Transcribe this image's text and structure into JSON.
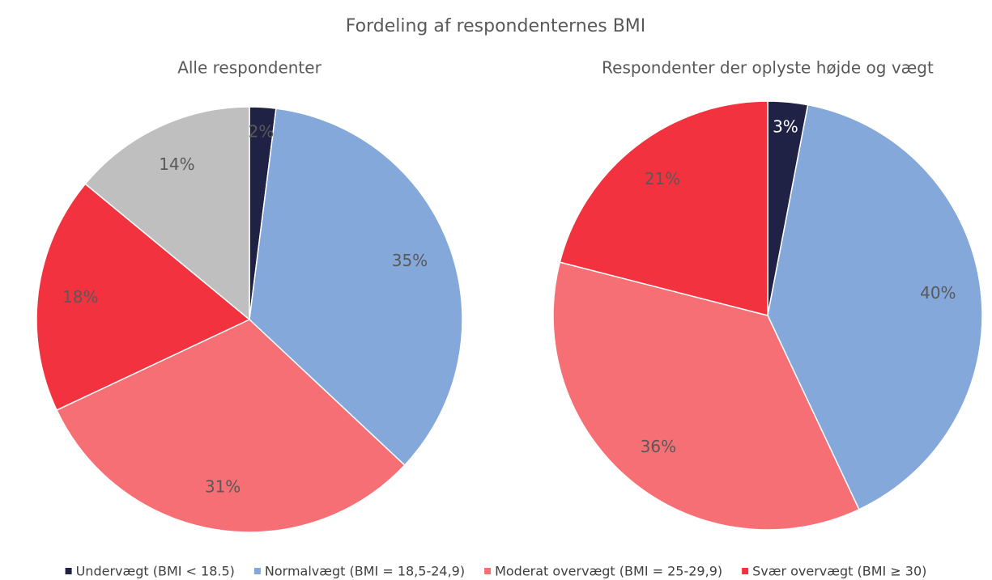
{
  "title": "Fordeling af respondenternes BMI",
  "chart_data": [
    {
      "type": "pie",
      "title": "Alle respondenter",
      "categories": [
        "Undervægt (BMI < 18.5)",
        "Normalvægt (BMI = 18,5-24,9)",
        "Moderat overvægt (BMI = 25-29,9)",
        "Svær overvægt (BMI ≥ 30)",
        null
      ],
      "values": [
        2,
        35,
        31,
        18,
        14
      ],
      "value_labels": [
        "2%",
        "35%",
        "31%",
        "18%",
        "14%"
      ],
      "colors": [
        "#1f2244",
        "#84a8da",
        "#f66f75",
        "#f2323e",
        "#bfbfbf"
      ],
      "legend": "bottom"
    },
    {
      "type": "pie",
      "title": "Respondenter der oplyste højde og vægt",
      "categories": [
        "Undervægt (BMI < 18.5)",
        "Normalvægt (BMI = 18,5-24,9)",
        "Moderat overvægt (BMI = 25-29,9)",
        "Svær overvægt (BMI ≥ 30)"
      ],
      "values": [
        3,
        40,
        36,
        21
      ],
      "value_labels": [
        "3%",
        "40%",
        "36%",
        "21%"
      ],
      "colors": [
        "#1f2244",
        "#84a8da",
        "#f66f75",
        "#f2323e"
      ]
    }
  ]
}
